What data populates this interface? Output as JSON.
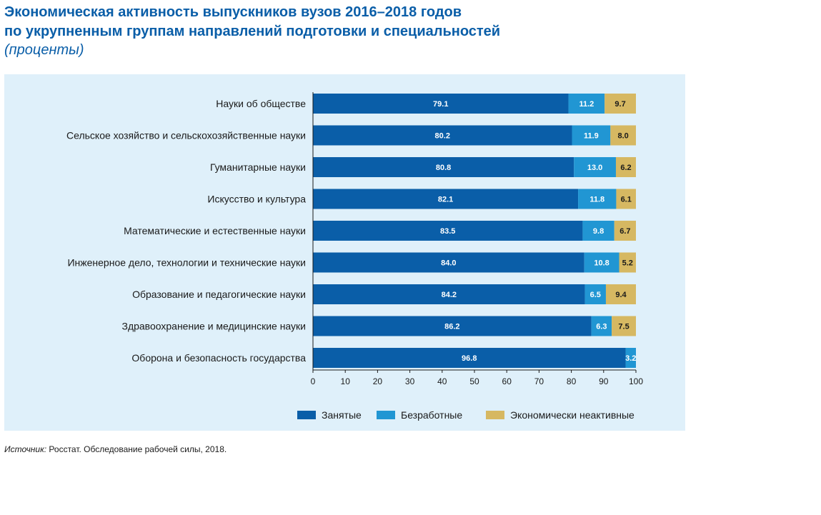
{
  "header": {
    "title_line1": "Экономическая активность выпускников вузов 2016–2018 годов",
    "title_line2": "по укрупненным группам направлений подготовки и специальностей",
    "subtitle": "(проценты)"
  },
  "source": {
    "prefix": "Источник:",
    "text": " Росстат. Обследование рабочей силы, 2018."
  },
  "colors": {
    "panel_bg": "#dff0fa",
    "employed": "#0a5ea8",
    "unemployed": "#2196d3",
    "inactive": "#d6b862"
  },
  "chart_data": {
    "type": "bar",
    "orientation": "horizontal",
    "stacked": true,
    "categories": [
      "Науки об обществе",
      "Сельское хозяйство и сельскохозяйственные науки",
      "Гуманитарные науки",
      "Искусство и культура",
      "Математические и естественные науки",
      "Инженерное дело, технологии и технические науки",
      "Образование и педагогические науки",
      "Здравоохранение и медицинские науки",
      "Оборона и безопасность государства"
    ],
    "series": [
      {
        "name": "Занятые",
        "color": "#0a5ea8",
        "label_color": "#ffffff",
        "values": [
          79.1,
          80.2,
          80.8,
          82.1,
          83.5,
          84.0,
          84.2,
          86.2,
          96.8
        ]
      },
      {
        "name": "Безработные",
        "color": "#2196d3",
        "label_color": "#ffffff",
        "values": [
          11.2,
          11.9,
          13.0,
          11.8,
          9.8,
          10.8,
          6.5,
          6.3,
          3.2
        ]
      },
      {
        "name": "Экономически неактивные",
        "color": "#d6b862",
        "label_color": "#1a1a1a",
        "values": [
          9.7,
          8.0,
          6.2,
          6.1,
          6.7,
          5.2,
          9.4,
          7.5,
          null
        ]
      }
    ],
    "xlim": [
      0,
      100
    ],
    "xticks": [
      0,
      10,
      20,
      30,
      40,
      50,
      60,
      70,
      80,
      90,
      100
    ],
    "legend_position": "bottom",
    "grid": false
  }
}
